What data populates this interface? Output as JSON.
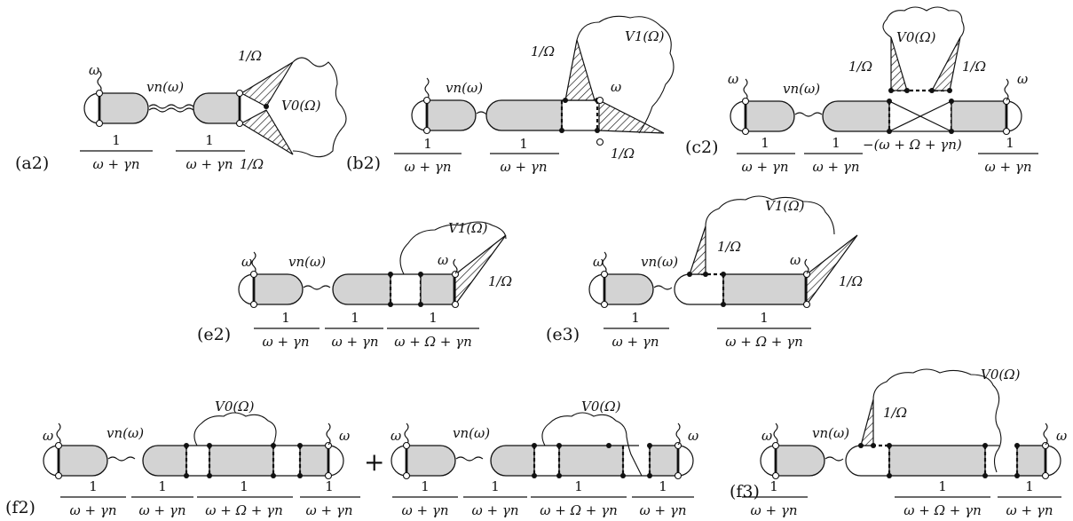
{
  "panels": {
    "a2": {
      "label": "(a2)",
      "frac1": "1",
      "den1": "ω + γn",
      "frac2": "1",
      "den2": "ω + γn",
      "omega": "ω",
      "vertex": "vn(ω)",
      "inv1": "1/Ω",
      "inv2": "1/Ω",
      "V": "V0(Ω)"
    },
    "b2": {
      "label": "(b2)",
      "frac1": "1",
      "den1": "ω + γn",
      "frac2": "1",
      "den2": "ω + γn",
      "omega": "ω",
      "vertex": "vn(ω)",
      "inv1": "1/Ω",
      "inv2": "1/Ω",
      "V": "V1(Ω)"
    },
    "c2": {
      "label": "(c2)",
      "frac1": "1",
      "den1": "ω + γn",
      "frac2": "1",
      "den2": "ω + γn",
      "mid": "−(ω + Ω + γn)",
      "frac3": "1",
      "den3": "ω + γn",
      "omega": "ω",
      "vertex": "vn(ω)",
      "inv1": "1/Ω",
      "inv2": "1/Ω",
      "V": "V0(Ω)"
    },
    "e2": {
      "label": "(e2)",
      "frac1": "1",
      "den1": "ω + γn",
      "frac2": "1",
      "den2": "ω + γn",
      "frac3": "1",
      "den3": "ω + Ω + γn",
      "omega": "ω",
      "vertex": "vn(ω)",
      "inv1": "1/Ω",
      "V": "V1(Ω)"
    },
    "e3": {
      "label": "(e3)",
      "frac1": "1",
      "den1": "ω + γn",
      "frac2": "1",
      "den2": "ω + Ω + γn",
      "omega": "ω",
      "vertex": "vn(ω)",
      "inv1": "1/Ω",
      "inv2": "1/Ω",
      "V": "V1(Ω)"
    },
    "f2": {
      "label": "(f2)",
      "plus": "+",
      "fracs": [
        "1",
        "1",
        "1",
        "1"
      ],
      "dens": [
        "ω + γn",
        "ω + γn",
        "ω + Ω + γn",
        "ω + γn"
      ],
      "fracsB": [
        "1",
        "1",
        "1",
        "1"
      ],
      "densB": [
        "ω + γn",
        "ω + γn",
        "ω + Ω + γn",
        "ω + γn"
      ],
      "omega": "ω",
      "vertex": "vn(ω)",
      "V": "V0(Ω)"
    },
    "f3": {
      "label": "(f3)",
      "fracs": [
        "1",
        "1",
        "1"
      ],
      "dens": [
        "ω + γn",
        "ω + Ω + γn",
        "ω + γn"
      ],
      "omega": "ω",
      "vertex": "vn(ω)",
      "inv1": "1/Ω",
      "V": "V0(Ω)"
    }
  }
}
